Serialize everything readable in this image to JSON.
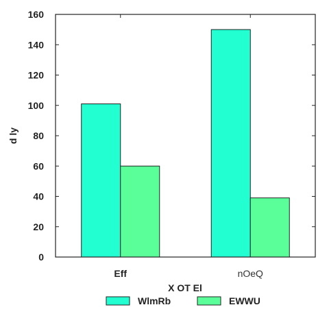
{
  "chart_data": {
    "type": "bar",
    "title": "",
    "xlabel": "X OT El",
    "ylabel": "d ly",
    "categories": [
      "Eff",
      "nOeQ"
    ],
    "series": [
      {
        "name": "WlmRb",
        "values": [
          101,
          150
        ],
        "color": "#22ffd0"
      },
      {
        "name": "EWWU",
        "values": [
          60,
          39
        ],
        "color": "#5aff9a"
      }
    ],
    "ylim": [
      0,
      160
    ],
    "yticks": [
      0,
      20,
      40,
      60,
      80,
      100,
      120,
      140,
      160
    ],
    "grid": false,
    "legend_position": "bottom-center"
  }
}
